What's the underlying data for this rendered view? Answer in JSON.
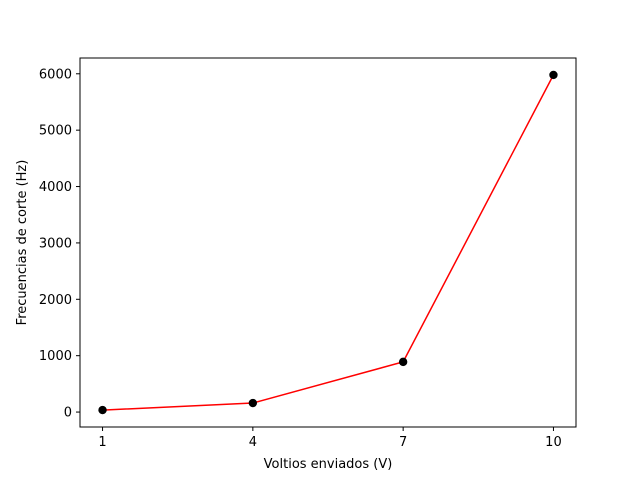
{
  "chart_data": {
    "type": "line",
    "title": "",
    "xlabel": "Voltios enviados (V)",
    "ylabel": "Frecuencias de corte (Hz)",
    "x": [
      1,
      4,
      7,
      10
    ],
    "series": [
      {
        "values": [
          35,
          160,
          890,
          5980
        ],
        "line_color": "#ff0000",
        "marker_color": "#000000"
      }
    ],
    "xticks": [
      1,
      4,
      7,
      10
    ],
    "yticks": [
      0,
      1000,
      2000,
      3000,
      4000,
      5000,
      6000
    ],
    "xlim": [
      0.55,
      10.45
    ],
    "ylim": [
      -265,
      6280
    ],
    "grid": false,
    "legend": "none"
  }
}
